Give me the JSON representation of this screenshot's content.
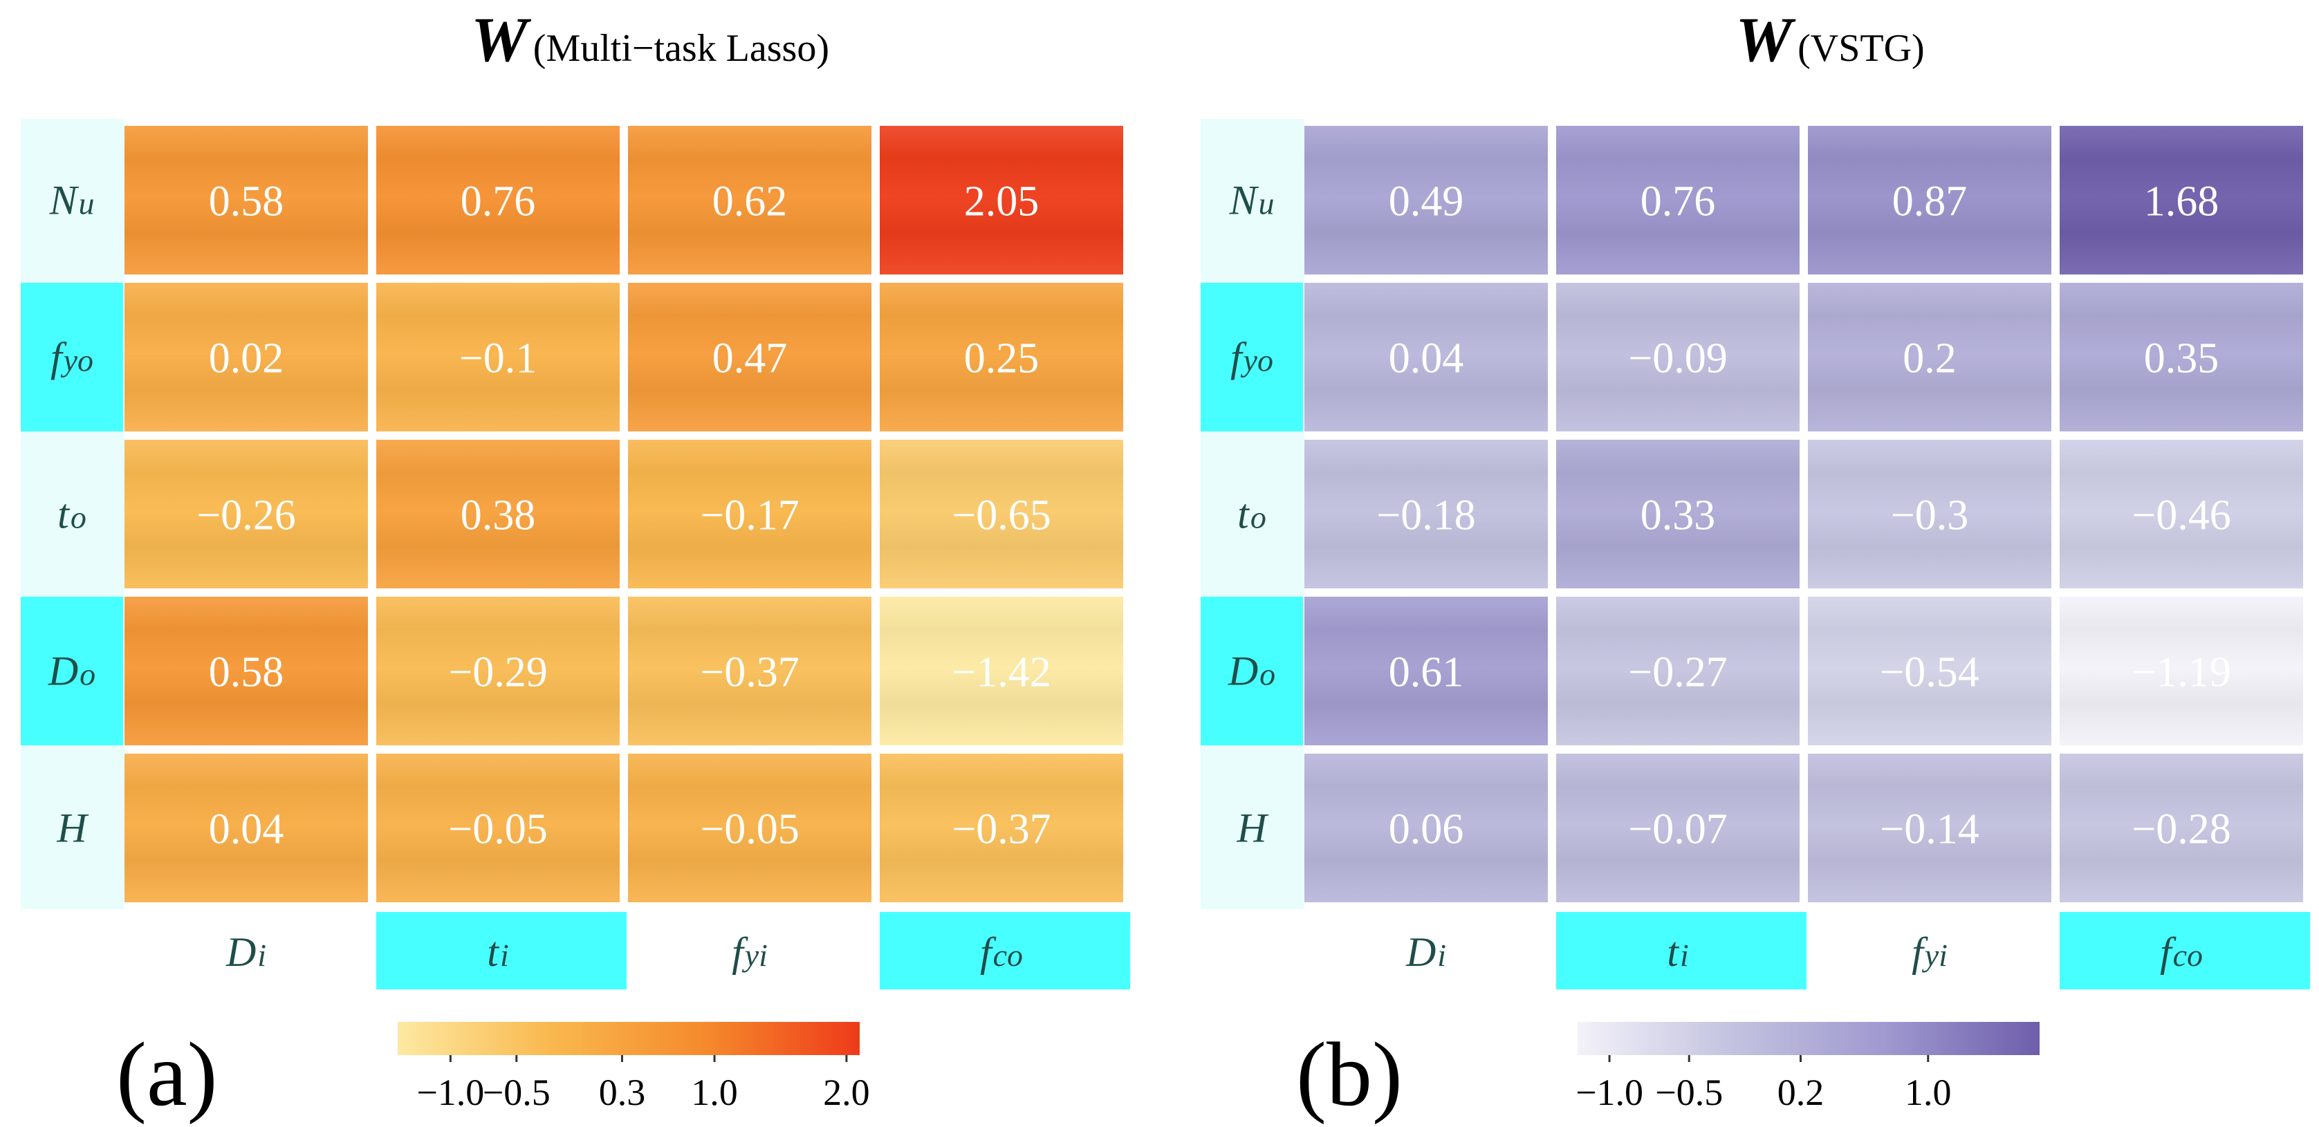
{
  "chart_data": [
    {
      "type": "heatmap",
      "title_symbol": "W",
      "title": "(Multi−task Lasso)",
      "panel_label": "(a)",
      "rows": [
        {
          "sym": "N",
          "sub": "u"
        },
        {
          "sym": "f",
          "sub": "yo"
        },
        {
          "sym": "t",
          "sub": "o"
        },
        {
          "sym": "D",
          "sub": "o"
        },
        {
          "sym": "H",
          "sub": ""
        }
      ],
      "columns": [
        {
          "sym": "D",
          "sub": "i"
        },
        {
          "sym": "t",
          "sub": "i"
        },
        {
          "sym": "f",
          "sub": "yi"
        },
        {
          "sym": "f",
          "sub": "co"
        }
      ],
      "highlighted_rows": [
        1,
        3
      ],
      "highlighted_columns": [
        1,
        3
      ],
      "values": [
        [
          0.58,
          0.76,
          0.62,
          2.05
        ],
        [
          0.02,
          -0.1,
          0.47,
          0.25
        ],
        [
          -0.26,
          0.38,
          -0.17,
          -0.65
        ],
        [
          0.58,
          -0.29,
          -0.37,
          -1.42
        ],
        [
          0.04,
          -0.05,
          -0.05,
          -0.37
        ]
      ],
      "labels": [
        [
          "0.58",
          "0.76",
          "0.62",
          "2.05"
        ],
        [
          "0.02",
          "−0.1",
          "0.47",
          "0.25"
        ],
        [
          "−0.26",
          "0.38",
          "−0.17",
          "−0.65"
        ],
        [
          "0.58",
          "−0.29",
          "−0.37",
          "−1.42"
        ],
        [
          "0.04",
          "−0.05",
          "−0.05",
          "−0.37"
        ]
      ],
      "colorbar": {
        "range": [
          -1.4,
          2.1
        ],
        "ticks": [
          -1.0,
          -0.5,
          0.3,
          1.0,
          2.0
        ],
        "tick_labels": [
          "−1.0",
          "−0.5",
          "0.3",
          "1.0",
          "2.0"
        ],
        "colors": [
          "#fde9a2",
          "#f9b84e",
          "#f58a2c",
          "#ee3a1a"
        ]
      }
    },
    {
      "type": "heatmap",
      "title_symbol": "W",
      "title": "(VSTG)",
      "panel_label": "(b)",
      "rows": [
        {
          "sym": "N",
          "sub": "u"
        },
        {
          "sym": "f",
          "sub": "yo"
        },
        {
          "sym": "t",
          "sub": "o"
        },
        {
          "sym": "D",
          "sub": "o"
        },
        {
          "sym": "H",
          "sub": ""
        }
      ],
      "columns": [
        {
          "sym": "D",
          "sub": "i"
        },
        {
          "sym": "t",
          "sub": "i"
        },
        {
          "sym": "f",
          "sub": "yi"
        },
        {
          "sym": "f",
          "sub": "co"
        }
      ],
      "highlighted_rows": [
        1,
        3
      ],
      "highlighted_columns": [
        1,
        3
      ],
      "values": [
        [
          0.49,
          0.76,
          0.87,
          1.68
        ],
        [
          0.04,
          -0.09,
          0.2,
          0.35
        ],
        [
          -0.18,
          0.33,
          -0.3,
          -0.46
        ],
        [
          0.61,
          -0.27,
          -0.54,
          -1.19
        ],
        [
          0.06,
          -0.07,
          -0.14,
          -0.28
        ]
      ],
      "labels": [
        [
          "0.49",
          "0.76",
          "0.87",
          "1.68"
        ],
        [
          "0.04",
          "−0.09",
          "0.2",
          "0.35"
        ],
        [
          "−0.18",
          "0.33",
          "−0.3",
          "−0.46"
        ],
        [
          "0.61",
          "−0.27",
          "−0.54",
          "−1.19"
        ],
        [
          "0.06",
          "−0.07",
          "−0.14",
          "−0.28"
        ]
      ],
      "colorbar": {
        "range": [
          -1.2,
          1.7
        ],
        "ticks": [
          -1.0,
          -0.5,
          0.2,
          1.0
        ],
        "tick_labels": [
          "−1.0",
          "−0.5",
          "0.2",
          "1.0"
        ],
        "colors": [
          "#f3f2f9",
          "#c3c3e0",
          "#9f99cf",
          "#6e5eab"
        ]
      }
    }
  ],
  "style": {
    "highlight_color": "#48ffff",
    "label_tint": "#e9fdfd",
    "axis_text_color": "#1f4e4a",
    "value_text_color": "#ffffff"
  }
}
